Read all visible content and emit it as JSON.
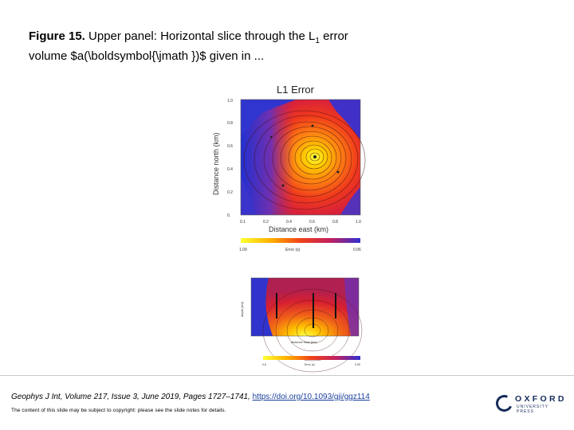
{
  "caption": {
    "label": "Figure 15.",
    "text_before_sub": " Upper panel: Horizontal slice through the L",
    "subscript": "1",
    "text_after_sub": " error",
    "line2": "volume $a(\\boldsymbol{\\jmath })$ given in ..."
  },
  "upper_panel": {
    "title": "L1 Error",
    "xlabel": "Distance east (km)",
    "ylabel": "Distance north (km)",
    "x_ticks": [
      "0.1",
      "0.2",
      "0.4",
      "0.6",
      "0.8",
      "1.0"
    ],
    "y_ticks": [
      "1.0",
      "0.8",
      "0.6",
      "0.4",
      "0.2",
      "0."
    ],
    "colorbar_left": "1.09",
    "colorbar_label": "Error (s)",
    "colorbar_right": "0.06"
  },
  "lower_panel": {
    "xlabel": "distance east (km)",
    "ylabel": "depth (km)",
    "colorbar_left": "0.6",
    "colorbar_label": "Error (s)",
    "colorbar_right": "0.05"
  },
  "footer": {
    "citation_text": "Geophys J Int, Volume 217, Issue 3, June 2019, Pages 1727–1741, ",
    "doi": "https://doi.org/10.1093/gji/ggz114",
    "copyright": "The content of this slide may be subject to copyright: please see the slide notes for details."
  },
  "logo": {
    "word": "OXFORD",
    "sub": "UNIVERSITY PRESS"
  },
  "colors": {
    "low": "#2222cc",
    "mid": "#e83020",
    "high": "#ffff30",
    "brand": "#152c5b"
  }
}
